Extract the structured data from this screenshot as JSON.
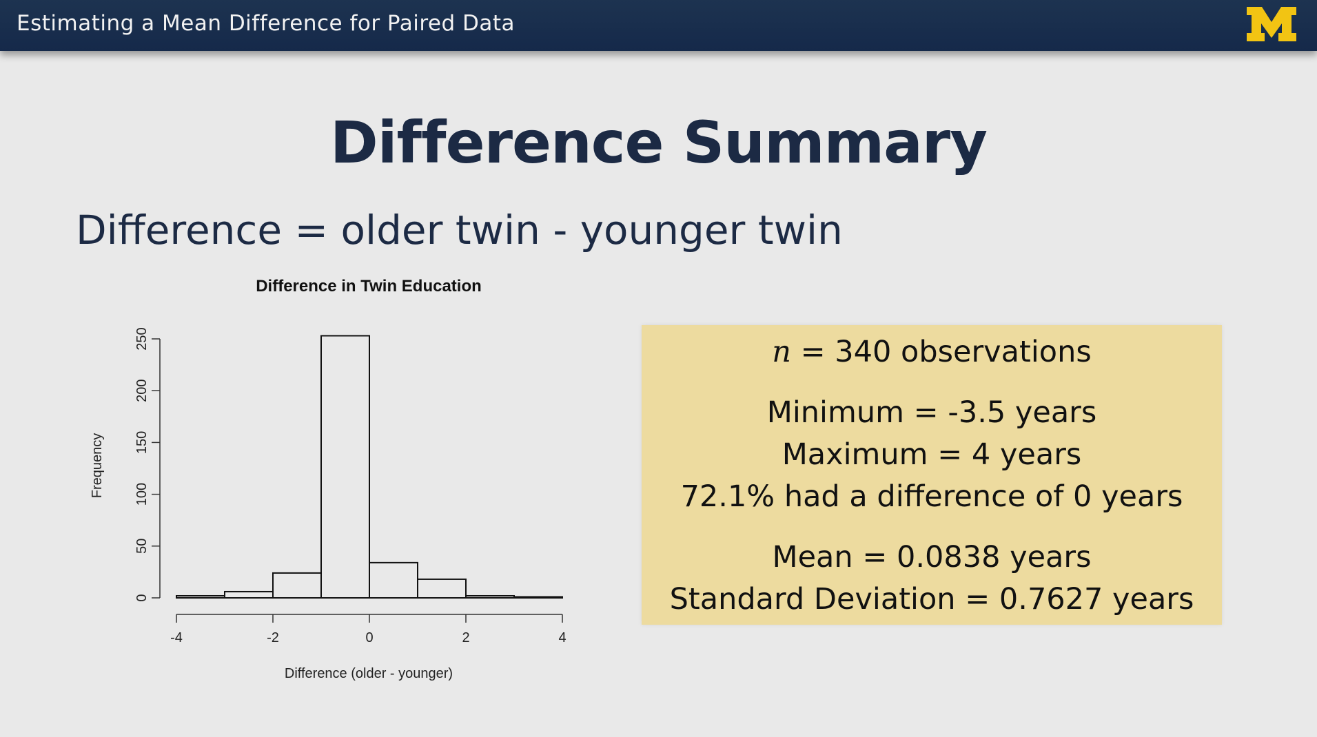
{
  "header": {
    "title": "Estimating a Mean Difference for Paired Data",
    "logo_text": "M",
    "logo_color": "#f2c413"
  },
  "slide": {
    "title": "Difference Summary",
    "subtitle": "Difference = older twin - younger twin"
  },
  "summary": {
    "n_symbol": "n",
    "n_rest": " = 340 observations",
    "minimum": "Minimum = -3.5 years",
    "maximum": "Maximum = 4 years",
    "zero_pct": "72.1% had a difference of 0 years",
    "mean": "Mean = 0.0838 years",
    "sd": "Standard Deviation = 0.7627 years",
    "box_color": "#eddb9f"
  },
  "chart_data": {
    "type": "bar",
    "title": "Difference in Twin Education",
    "xlabel": "Difference (older - younger)",
    "ylabel": "Frequency",
    "bins": [
      [
        -4,
        -3
      ],
      [
        -3,
        -2
      ],
      [
        -2,
        -1
      ],
      [
        -1,
        0
      ],
      [
        0,
        1
      ],
      [
        1,
        2
      ],
      [
        2,
        3
      ],
      [
        3,
        4
      ]
    ],
    "values": [
      2,
      6,
      24,
      253,
      34,
      18,
      2,
      1
    ],
    "xlim": [
      -4,
      4
    ],
    "ylim": [
      0,
      250
    ],
    "xticks": [
      -4,
      -2,
      0,
      2,
      4
    ],
    "xtick_labels": [
      "-4",
      "-2",
      "0",
      "2",
      "4"
    ],
    "yticks": [
      0,
      50,
      100,
      150,
      200,
      250
    ],
    "ytick_labels": [
      "0",
      "50",
      "100",
      "150",
      "200",
      "250"
    ],
    "grid": false
  }
}
